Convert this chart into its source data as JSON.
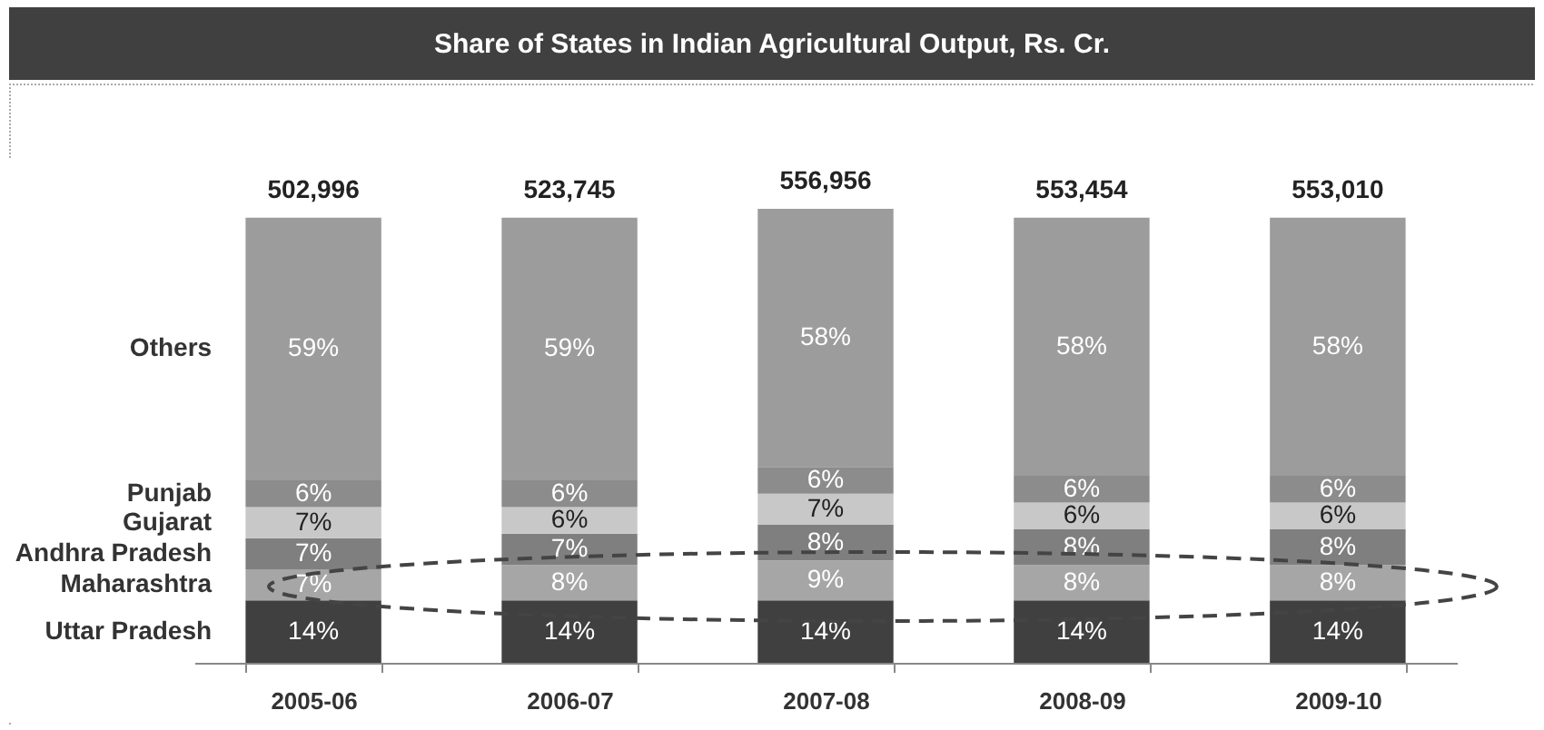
{
  "chart_data": {
    "type": "bar",
    "stacked": true,
    "title": "Share of States in Indian Agricultural Output, Rs. Cr.",
    "categories": [
      "2005-06",
      "2006-07",
      "2007-08",
      "2008-09",
      "2009-10"
    ],
    "tick_labels": "x",
    "series": [
      {
        "name": "Uttar Pradesh",
        "color": "#404040",
        "values": [
          14,
          14,
          14,
          14,
          14
        ],
        "value_labels": [
          "14%",
          "14%",
          "14%",
          "14%",
          "14%"
        ]
      },
      {
        "name": "Maharashtra",
        "color": "#a6a6a6",
        "values": [
          7,
          8,
          9,
          8,
          8
        ],
        "value_labels": [
          "7%",
          "8%",
          "9%",
          "8%",
          "8%"
        ]
      },
      {
        "name": "Andhra Pradesh",
        "color": "#7f7f7f",
        "values": [
          7,
          7,
          8,
          8,
          8
        ],
        "value_labels": [
          "7%",
          "7%",
          "8%",
          "8%",
          "8%"
        ]
      },
      {
        "name": "Gujarat",
        "color": "#c8c8c8",
        "values": [
          7,
          6,
          7,
          6,
          6
        ],
        "value_labels": [
          "7%",
          "6%",
          "7%",
          "6%",
          "6%"
        ]
      },
      {
        "name": "Punjab",
        "color": "#8c8c8c",
        "values": [
          6,
          6,
          6,
          6,
          6
        ],
        "value_labels": [
          "6%",
          "6%",
          "6%",
          "6%",
          "6%"
        ]
      },
      {
        "name": "Others",
        "color": "#9c9c9c",
        "values": [
          59,
          59,
          58,
          58,
          58
        ],
        "value_labels": [
          "59%",
          "59%",
          "58%",
          "58%",
          "58%"
        ]
      }
    ],
    "annotations": [
      {
        "text": "502,996",
        "x": "2005-06",
        "y": 100
      },
      {
        "text": "523,745",
        "x": "2006-07",
        "y": 100
      },
      {
        "text": "556,956",
        "x": "2007-08",
        "y": 102
      },
      {
        "text": "553,454",
        "x": "2008-09",
        "y": 100
      },
      {
        "text": "553,010",
        "x": "2009-10",
        "y": 100
      }
    ]
  }
}
